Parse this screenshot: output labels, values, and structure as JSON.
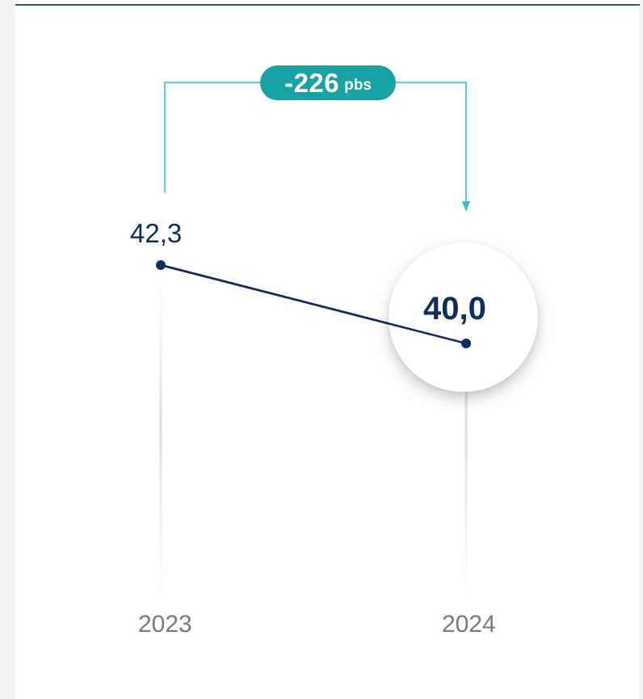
{
  "chart_data": {
    "type": "line",
    "categories": [
      "2023",
      "2024"
    ],
    "series": [
      {
        "values": [
          42.3,
          40.0
        ],
        "value_labels": [
          "42,3",
          "40,0"
        ]
      }
    ],
    "annotation": {
      "value": "-226",
      "unit": "pbs"
    },
    "highlighted_point": "2024",
    "colors": {
      "line": "#0f2e5c",
      "annotation": "#17a3a3",
      "connector": "#2ec4c4",
      "year_label": "#7a7a7a",
      "accent_rule": "#2b5a8e"
    }
  }
}
